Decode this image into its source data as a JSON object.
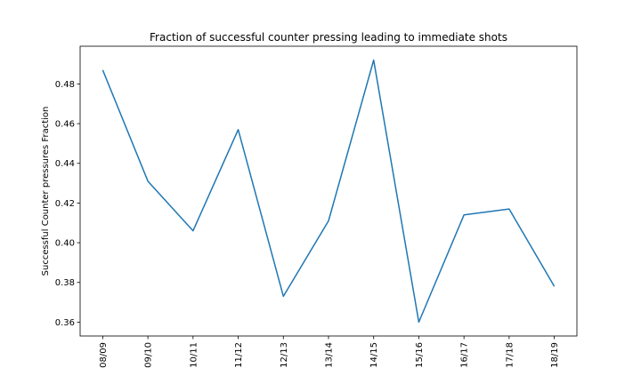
{
  "chart_data": {
    "type": "line",
    "title": "Fraction of successful counter pressing leading to immediate shots",
    "xlabel": "",
    "ylabel": "Successful Counter pressures Fraction",
    "categories": [
      "08/09",
      "09/10",
      "10/11",
      "11/12",
      "12/13",
      "13/14",
      "14/15",
      "15/16",
      "16/17",
      "17/18",
      "18/19"
    ],
    "series": [
      {
        "values": [
          0.487,
          0.431,
          0.406,
          0.457,
          0.373,
          0.411,
          0.492,
          0.36,
          0.414,
          0.417,
          0.378
        ],
        "color": "#1f77b4"
      }
    ],
    "ylim": [
      0.353,
      0.499
    ],
    "yticks": [
      "0.36",
      "0.38",
      "0.40",
      "0.42",
      "0.44",
      "0.46",
      "0.48"
    ],
    "grid": false,
    "legend": "none"
  }
}
